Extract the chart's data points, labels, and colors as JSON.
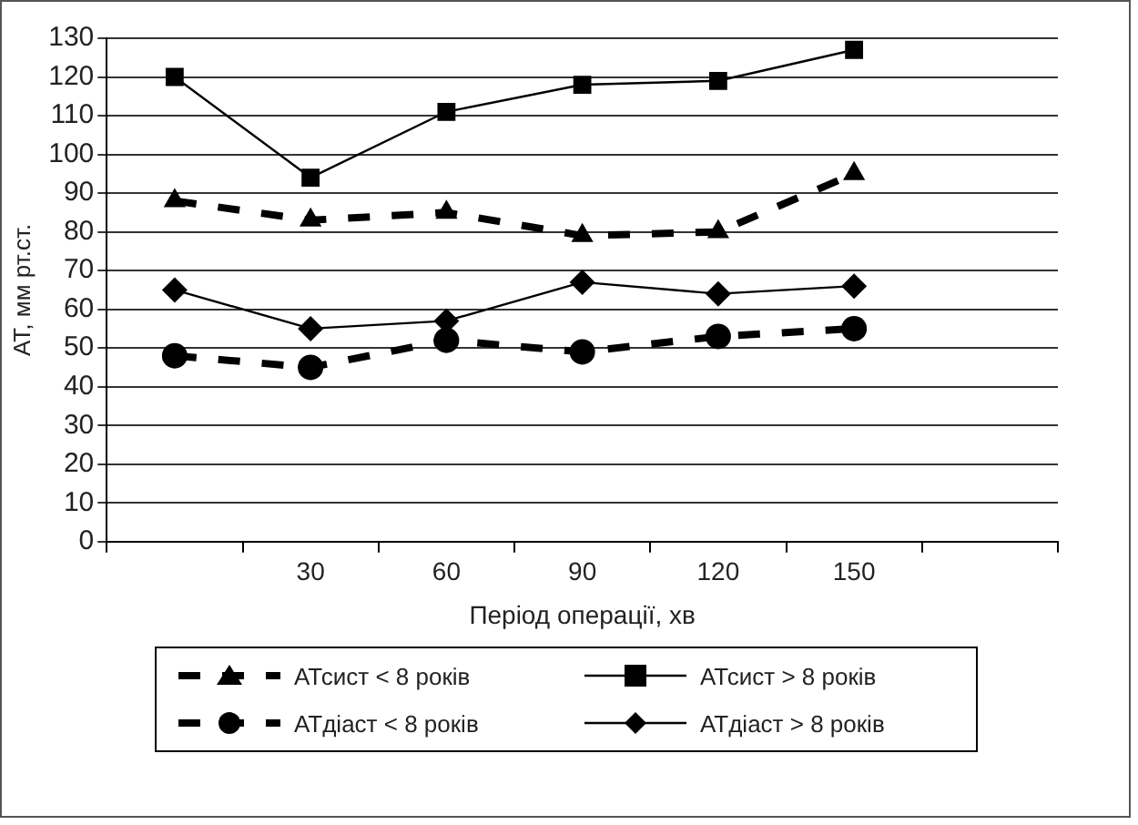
{
  "chart_data": {
    "type": "line",
    "xlabel": "Період операції, хв",
    "ylabel": "АТ, мм рт.ст.",
    "categories": [
      null,
      "30",
      "60",
      "90",
      "120",
      "150",
      null
    ],
    "series": [
      {
        "name": "АТсист < 8 років",
        "color": "#000000",
        "marker": "triangle",
        "line_style": "dashed",
        "values": [
          88,
          83,
          85,
          79,
          80,
          95,
          null
        ]
      },
      {
        "name": "АТсист > 8 років",
        "color": "#000000",
        "marker": "square",
        "line_style": "solid",
        "values": [
          120,
          94,
          111,
          118,
          119,
          127,
          null
        ]
      },
      {
        "name": "АТдіаст < 8 років",
        "color": "#000000",
        "marker": "circle",
        "line_style": "dashed",
        "values": [
          48,
          45,
          52,
          49,
          53,
          55,
          null
        ]
      },
      {
        "name": "АТдіаст > 8 років",
        "color": "#000000",
        "marker": "diamond",
        "line_style": "solid",
        "values": [
          65,
          55,
          57,
          67,
          64,
          66,
          null
        ]
      }
    ],
    "ylim": [
      0,
      130
    ],
    "yticks": [
      0,
      10,
      20,
      30,
      40,
      50,
      60,
      70,
      80,
      90,
      100,
      110,
      120,
      130
    ],
    "grid": "y",
    "legend": "bottom"
  }
}
